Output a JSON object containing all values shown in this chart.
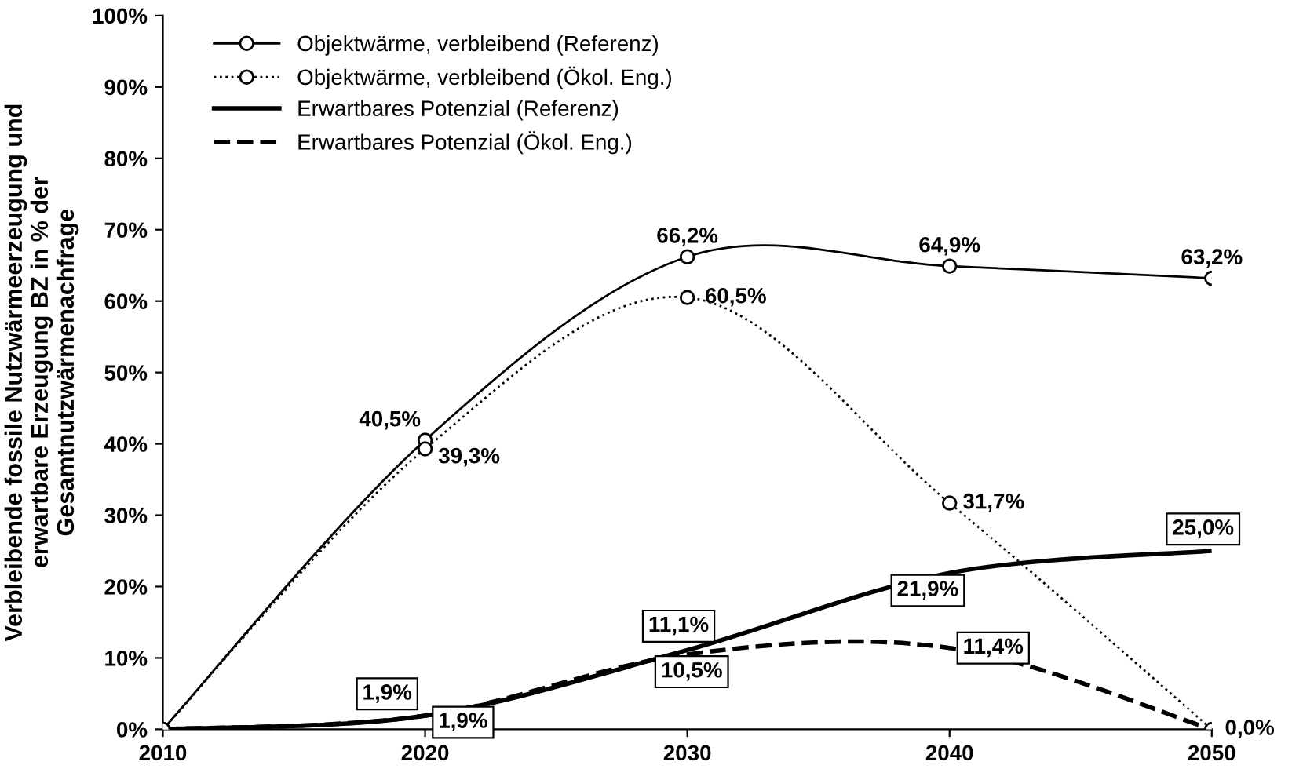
{
  "chart_data": {
    "type": "line",
    "ylabel": "Verbleibende fossile Nutzwärmeerzeugung und\nerwartbare Erzeugung BZ in % der\nGesamtnutzwärmenachfrage",
    "x": [
      2010,
      2020,
      2030,
      2040,
      2050
    ],
    "xlim": [
      2010,
      2050
    ],
    "xticks": [
      2010,
      2020,
      2030,
      2040,
      2050
    ],
    "ylim": [
      0,
      100
    ],
    "yticks": [
      {
        "value": 0,
        "label": "0%"
      },
      {
        "value": 10,
        "label": "10%"
      },
      {
        "value": 20,
        "label": "20%"
      },
      {
        "value": 30,
        "label": "30%"
      },
      {
        "value": 40,
        "label": "40%"
      },
      {
        "value": 50,
        "label": "50%"
      },
      {
        "value": 60,
        "label": "60%"
      },
      {
        "value": 70,
        "label": "70%"
      },
      {
        "value": 80,
        "label": "80%"
      },
      {
        "value": 90,
        "label": "90%"
      },
      {
        "value": 100,
        "label": "100%"
      }
    ],
    "grid": false,
    "legend": "top left",
    "series": [
      {
        "name": "Objektwärme, verbleibend (Referenz)",
        "color": "#000000",
        "marker": "circle",
        "line_style": "solid",
        "values": [
          0,
          40.5,
          66.2,
          64.9,
          63.2
        ],
        "value_labels": [
          null,
          "40,5%",
          "66,2%",
          "64,9%",
          "63,2%"
        ]
      },
      {
        "name": "Objektwärme, verbleibend (Ökol. Eng.)",
        "color": "#000000",
        "marker": "circle",
        "line_style": "dotted",
        "values": [
          0,
          39.3,
          60.5,
          31.7,
          0.0
        ],
        "value_labels": [
          null,
          "39,3%",
          "60,5%",
          "31,7%",
          "0,0%"
        ]
      },
      {
        "name": "Erwartbares Potenzial (Referenz)",
        "color": "#000000",
        "marker": "none",
        "line_style": "solid",
        "values": [
          0,
          1.9,
          11.1,
          21.9,
          25.0
        ],
        "value_labels": [
          null,
          "1,9%",
          "11,1%",
          "21,9%",
          "25,0%"
        ]
      },
      {
        "name": "Erwartbares Potenzial (Ökol. Eng.)",
        "color": "#000000",
        "marker": "none",
        "line_style": "dashed",
        "values": [
          0,
          1.9,
          10.5,
          11.4,
          0.0
        ],
        "value_labels": [
          null,
          "1,9%",
          "10,5%",
          "11,4%",
          null
        ]
      }
    ]
  }
}
